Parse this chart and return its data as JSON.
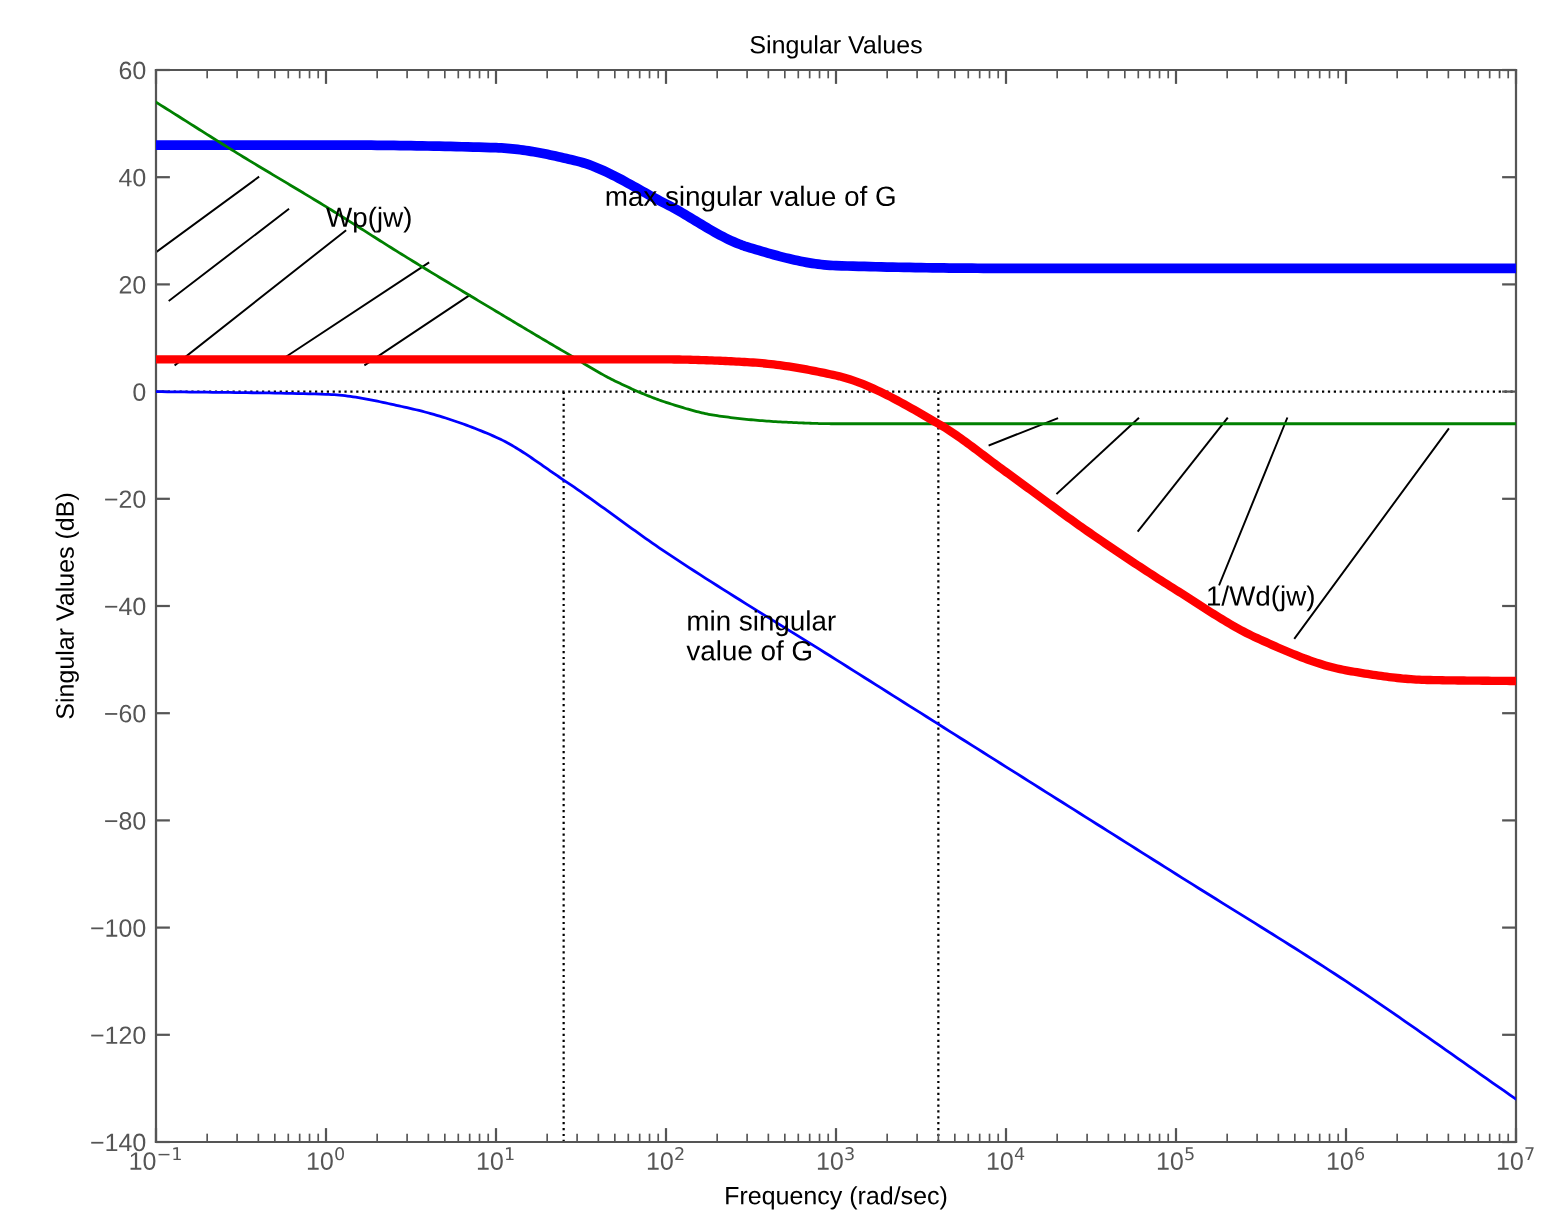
{
  "chart_data": {
    "type": "line",
    "title": "Singular Values",
    "xlabel": "Frequency (rad/sec)",
    "ylabel": "Singular Values (dB)",
    "log": "x",
    "xlim": [
      0.1,
      10000000
    ],
    "ylim": [
      -140,
      60
    ],
    "xticks": [
      {
        "value": 0.1,
        "label": "10$^{−1}$"
      },
      {
        "value": 1,
        "label": "10$^{0}$"
      },
      {
        "value": 10,
        "label": "10$^{1}$"
      },
      {
        "value": 100,
        "label": "10$^{2}$"
      },
      {
        "value": 1000,
        "label": "10$^{3}$"
      },
      {
        "value": 10000,
        "label": "10$^{4}$"
      },
      {
        "value": 100000,
        "label": "10$^{5}$"
      },
      {
        "value": 1000000,
        "label": "10$^{6}$"
      },
      {
        "value": 10000000,
        "label": "10$^{7}$"
      }
    ],
    "yticks": [
      -140,
      -120,
      -100,
      -80,
      -60,
      -40,
      -20,
      0,
      20,
      40,
      60
    ],
    "grid": false,
    "legend": false,
    "marker": "none",
    "line_style": "solid",
    "series": [
      {
        "color": "#0000ff",
        "x": [
          0.1,
          1,
          10,
          30,
          100,
          300,
          1000,
          10000,
          10000000
        ],
        "values": [
          46,
          46,
          45.5,
          43,
          35,
          27,
          23.5,
          23,
          23
        ]
      },
      {
        "color": "#0000ff",
        "x": [
          0.1,
          1,
          3,
          10,
          25,
          100,
          1000,
          10000,
          100000,
          1000000,
          10000000
        ],
        "values": [
          0,
          -0.5,
          -3,
          -8.5,
          -16.5,
          -30,
          -50,
          -70,
          -90,
          -110,
          -132
        ]
      },
      {
        "color": "#008000",
        "x": [
          0.1,
          0.3,
          1,
          3,
          10,
          25,
          50,
          100,
          200,
          500,
          1000,
          10000000
        ],
        "values": [
          54,
          44.5,
          34.5,
          25,
          15,
          7.5,
          2,
          -2,
          -4.5,
          -5.7,
          -6,
          -6
        ]
      },
      {
        "color": "#ff0000",
        "x": [
          0.1,
          100,
          300,
          1000,
          4000,
          10000,
          30000,
          100000,
          300000,
          1000000,
          3000000,
          10000000
        ],
        "values": [
          6,
          6,
          5.5,
          3,
          -6,
          -15,
          -26,
          -37,
          -46,
          -52,
          -53.8,
          -54
        ]
      }
    ],
    "ref_lines": [
      {
        "axis": "y",
        "value": 0,
        "line_style": "dotted",
        "color": "#000000"
      },
      {
        "axis": "x",
        "value": 25,
        "line_style": "dotted",
        "color": "#000000"
      },
      {
        "axis": "x",
        "value": 4000,
        "line_style": "dotted",
        "color": "#000000"
      }
    ],
    "annotations": [
      "max singular value of G",
      {
        "text": "Wp(jw)",
        "x": 1,
        "y": 34.5
      },
      "min singular\nvalue of G",
      {
        "text": "1/Wd(jw)",
        "x": 150000,
        "y": -41
      }
    ]
  }
}
